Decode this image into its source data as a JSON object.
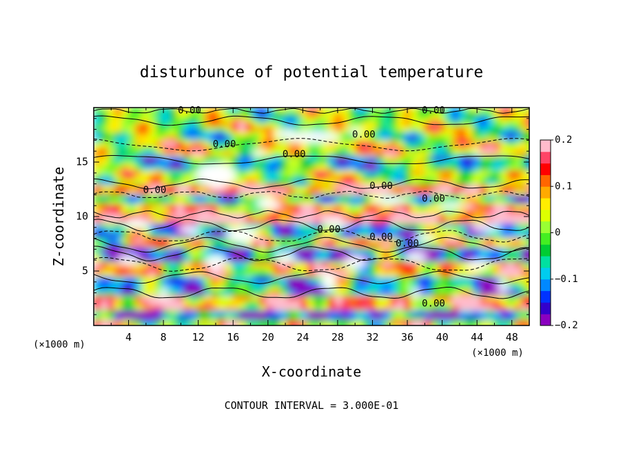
{
  "chart_data": {
    "type": "heatmap",
    "title": "disturbunce of potential temperature",
    "xlabel": "X-coordinate",
    "ylabel": "Z-coordinate",
    "x_unit": "(×1000 m)",
    "y_unit": "(×1000 m)",
    "xlim": [
      0,
      50
    ],
    "ylim": [
      0,
      20
    ],
    "x_ticks": [
      4,
      8,
      12,
      16,
      20,
      24,
      28,
      32,
      36,
      40,
      44,
      48
    ],
    "y_ticks": [
      5,
      10,
      15
    ],
    "colorbar": {
      "range": [
        -0.2,
        0.2
      ],
      "tick_values": [
        0.2,
        0.1,
        0,
        -0.1,
        -0.2
      ],
      "tick_labels": [
        "0.2",
        "0.1",
        "0",
        "−0.1",
        "−0.2"
      ],
      "colors": [
        "#8a00c0",
        "#3300cc",
        "#0033ff",
        "#0088ff",
        "#00ccee",
        "#00e0a0",
        "#00cc33",
        "#44ee22",
        "#99ff33",
        "#ddff00",
        "#ffee00",
        "#ffaa00",
        "#ff6600",
        "#ff0000",
        "#ff4466",
        "#ffbbcc"
      ]
    },
    "contour_labels": [
      {
        "x": 11,
        "z": 19.7,
        "text": "0.00"
      },
      {
        "x": 39,
        "z": 19.7,
        "text": "0.00"
      },
      {
        "x": 31,
        "z": 17.5,
        "text": "0.00"
      },
      {
        "x": 15,
        "z": 16.6,
        "text": "0.00"
      },
      {
        "x": 23,
        "z": 15.7,
        "text": "0.00"
      },
      {
        "x": 7,
        "z": 12.4,
        "text": "0.00"
      },
      {
        "x": 33,
        "z": 12.8,
        "text": "0.00"
      },
      {
        "x": 39,
        "z": 11.6,
        "text": "0.00"
      },
      {
        "x": 27,
        "z": 8.8,
        "text": "0.00"
      },
      {
        "x": 33,
        "z": 8.1,
        "text": "0.00"
      },
      {
        "x": 36,
        "z": 7.5,
        "text": "0.00"
      },
      {
        "x": 39,
        "z": 2.0,
        "text": "0.00"
      }
    ],
    "footer": "CONTOUR INTERVAL = 3.000E-01"
  }
}
